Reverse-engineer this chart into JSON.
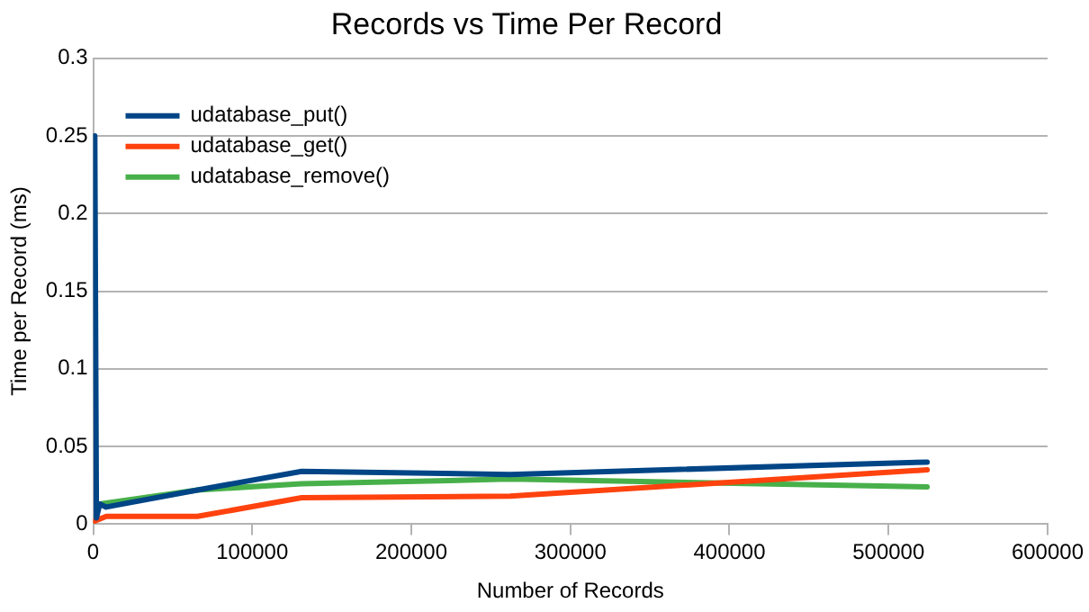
{
  "chart_data": {
    "type": "line",
    "title": "Records vs Time Per Record",
    "xlabel": "Number of Records",
    "ylabel": "Time per Record (ms)",
    "xlim": [
      0,
      600000
    ],
    "xticks": [
      0,
      100000,
      200000,
      300000,
      400000,
      500000,
      600000
    ],
    "ylim": [
      0,
      0.3
    ],
    "yticks": [
      0,
      0.05,
      0.1,
      0.15,
      0.2,
      0.25,
      0.3
    ],
    "grid": "y",
    "legend": "top left",
    "marker": "none",
    "line_style": "solid",
    "series": [
      {
        "name": "udatabase_put()",
        "color": "#004586",
        "x": [
          1024,
          2048,
          4096,
          8192,
          65536,
          131072,
          262144,
          524288
        ],
        "values": [
          0.25,
          0.004,
          0.013,
          0.011,
          0.022,
          0.034,
          0.032,
          0.04
        ]
      },
      {
        "name": "udatabase_get()",
        "color": "#ff420e",
        "x": [
          1024,
          8192,
          65536,
          131072,
          262144,
          524288
        ],
        "values": [
          0.002,
          0.005,
          0.005,
          0.017,
          0.018,
          0.035
        ]
      },
      {
        "name": "udatabase_remove()",
        "color": "#48b04a",
        "x": [
          4096,
          65536,
          131072,
          262144,
          524288
        ],
        "values": [
          0.013,
          0.022,
          0.026,
          0.029,
          0.024
        ]
      }
    ]
  }
}
